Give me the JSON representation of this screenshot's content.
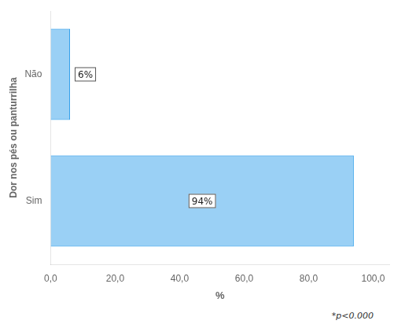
{
  "chart_data": {
    "type": "bar",
    "orientation": "horizontal",
    "categories": [
      "Sim",
      "Não"
    ],
    "values": [
      94,
      6
    ],
    "value_labels": [
      "94%",
      "6%"
    ],
    "data_labels": true,
    "xlabel": "%",
    "ylabel": "Dor nos pés ou panturrilha",
    "xlim": [
      0,
      105
    ],
    "xticks": [
      {
        "value": 0,
        "label": "0,0"
      },
      {
        "value": 20,
        "label": "20,0"
      },
      {
        "value": 40,
        "label": "40,0"
      },
      {
        "value": 60,
        "label": "60,0"
      },
      {
        "value": 80,
        "label": "80,0"
      },
      {
        "value": 100,
        "label": "100,0"
      }
    ],
    "annotation": "*p<0.000",
    "grid": false
  }
}
